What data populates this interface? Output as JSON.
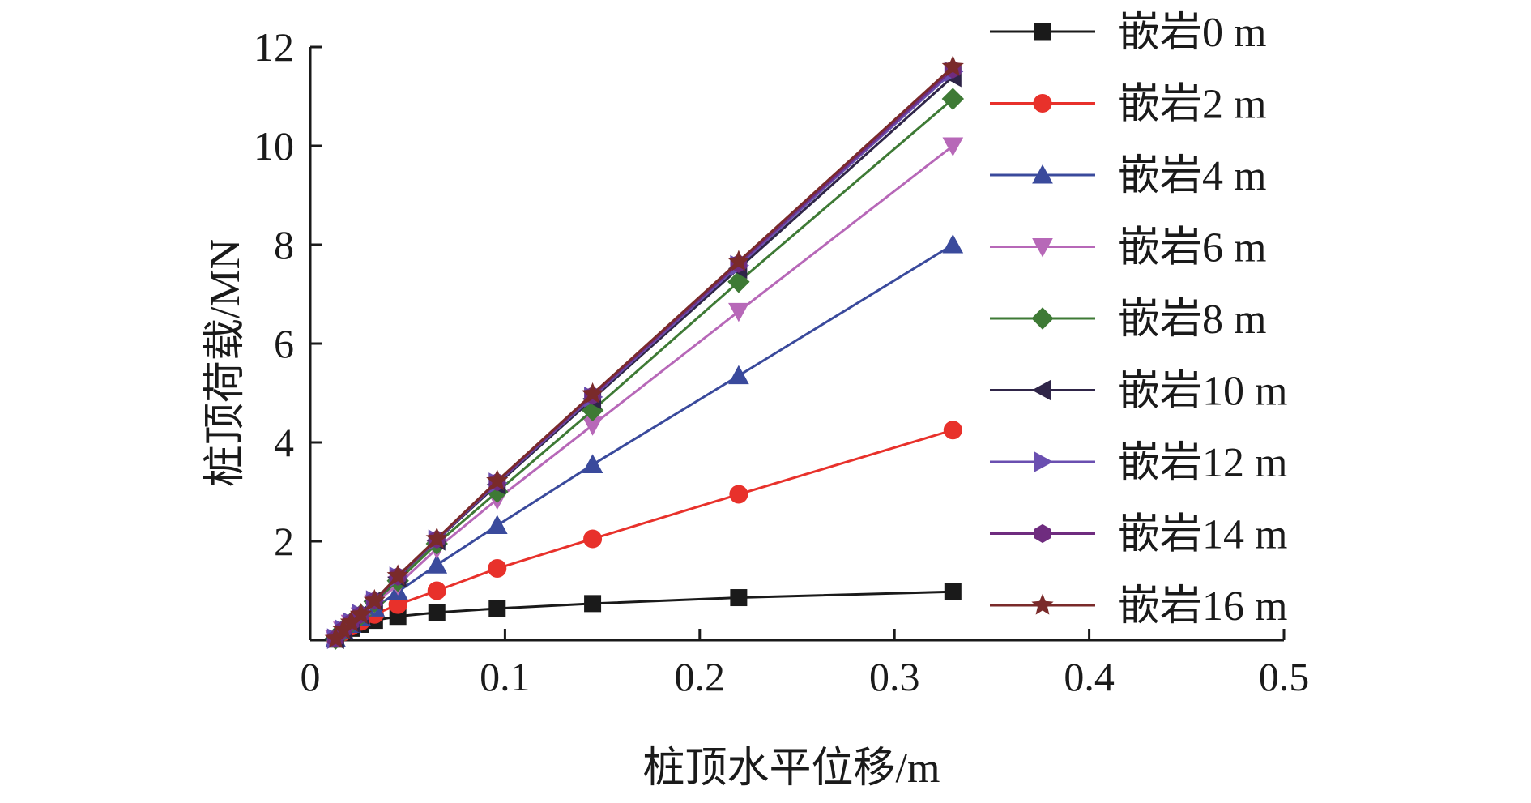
{
  "chart_data": {
    "type": "line",
    "xlabel": "桩顶水平位移/m",
    "ylabel": "桩顶荷载/MN",
    "xlim": [
      0,
      0.5
    ],
    "ylim": [
      0,
      12
    ],
    "xticks": [
      0,
      0.1,
      0.2,
      0.3,
      0.4,
      0.5
    ],
    "xtick_labels": [
      "0",
      "0.1",
      "0.2",
      "0.3",
      "0.4",
      "0.5"
    ],
    "yticks": [
      2,
      4,
      6,
      8,
      10,
      12
    ],
    "ytick_labels": [
      "2",
      "4",
      "6",
      "8",
      "10",
      "12"
    ],
    "grid": false,
    "legend_position": "right",
    "x": [
      0.013,
      0.017,
      0.021,
      0.026,
      0.033,
      0.045,
      0.065,
      0.096,
      0.145,
      0.22,
      0.33
    ],
    "series": [
      {
        "name": "嵌岩0 m",
        "color": "#1a1a1a",
        "marker": "square",
        "values": [
          0.02,
          0.15,
          0.24,
          0.32,
          0.4,
          0.48,
          0.56,
          0.64,
          0.74,
          0.86,
          0.98
        ]
      },
      {
        "name": "嵌岩2 m",
        "color": "#e8312b",
        "marker": "circle",
        "values": [
          0.03,
          0.17,
          0.28,
          0.38,
          0.52,
          0.72,
          1.0,
          1.45,
          2.05,
          2.95,
          4.25
        ]
      },
      {
        "name": "嵌岩4 m",
        "color": "#3a4a9c",
        "marker": "triangle-up",
        "values": [
          0.03,
          0.19,
          0.32,
          0.45,
          0.65,
          0.98,
          1.52,
          2.32,
          3.55,
          5.35,
          8.0
        ]
      },
      {
        "name": "嵌岩6 m",
        "color": "#b768b8",
        "marker": "triangle-down",
        "values": [
          0.03,
          0.2,
          0.34,
          0.49,
          0.75,
          1.12,
          1.85,
          2.85,
          4.35,
          6.65,
          10.0
        ]
      },
      {
        "name": "嵌岩8 m",
        "color": "#3e7a35",
        "marker": "diamond",
        "values": [
          0.03,
          0.21,
          0.35,
          0.51,
          0.78,
          1.2,
          1.95,
          3.0,
          4.65,
          7.25,
          10.95
        ]
      },
      {
        "name": "嵌岩10 m",
        "color": "#2f2548",
        "marker": "triangle-left",
        "values": [
          0.03,
          0.21,
          0.36,
          0.52,
          0.8,
          1.27,
          2.02,
          3.15,
          4.88,
          7.52,
          11.4
        ]
      },
      {
        "name": "嵌岩12 m",
        "color": "#6a4fb0",
        "marker": "triangle-right",
        "values": [
          0.03,
          0.21,
          0.36,
          0.52,
          0.8,
          1.28,
          2.03,
          3.18,
          4.92,
          7.58,
          11.5
        ]
      },
      {
        "name": "嵌岩14 m",
        "color": "#6f2c7f",
        "marker": "hexagon",
        "values": [
          0.03,
          0.21,
          0.36,
          0.52,
          0.8,
          1.29,
          2.04,
          3.2,
          4.95,
          7.62,
          11.55
        ]
      },
      {
        "name": "嵌岩16 m",
        "color": "#7a2a2a",
        "marker": "star",
        "values": [
          0.03,
          0.21,
          0.36,
          0.52,
          0.8,
          1.3,
          2.05,
          3.22,
          4.98,
          7.66,
          11.6
        ]
      }
    ]
  }
}
